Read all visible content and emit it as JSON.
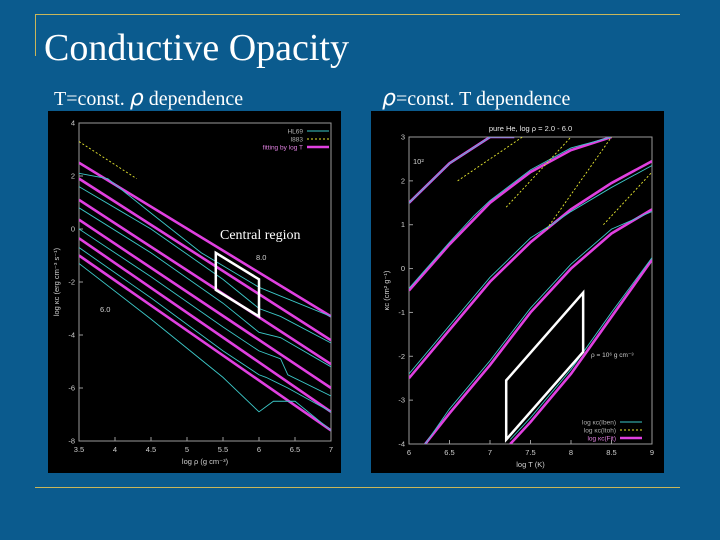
{
  "slide": {
    "title": "Conductive Opacity",
    "left_subtitle_pre": "T=const.",
    "left_subtitle_sym": "ρ",
    "left_subtitle_post": "dependence",
    "right_subtitle_sym": "ρ",
    "right_subtitle_post": "=const. T dependence",
    "colors": {
      "background": "#0b5b8e",
      "rule": "#c9b65a",
      "fit": "#e040e0",
      "hl69": "#3cc8c8",
      "itoh": "#e8e830"
    }
  },
  "chart_data": [
    {
      "type": "line",
      "xlabel": "log ρ (g cm⁻³)",
      "ylabel": "log κc (erg cm⁻³ s⁻¹)",
      "xlim": [
        3.5,
        7
      ],
      "ylim": [
        -8,
        4
      ],
      "xticks": [
        "3.5",
        "4",
        "4.5",
        "5",
        "5.5",
        "6",
        "6.5",
        "7"
      ],
      "yticks": [
        "4",
        "2",
        "0",
        "-2",
        "-4",
        "-6",
        "-8"
      ],
      "legend": [
        "HL69",
        "I883",
        "fitting by log T"
      ],
      "legend_position": "top-right",
      "annotations": [
        "Central region",
        "8.0",
        "6.0"
      ],
      "fit_lines": [
        {
          "x": [
            3.5,
            7
          ],
          "y": [
            2.5,
            -3.3
          ]
        },
        {
          "x": [
            3.5,
            7
          ],
          "y": [
            1.9,
            -4.2
          ]
        },
        {
          "x": [
            3.5,
            7
          ],
          "y": [
            1.1,
            -5.1
          ]
        },
        {
          "x": [
            3.5,
            7
          ],
          "y": [
            0.35,
            -6.0
          ]
        },
        {
          "x": [
            3.5,
            7
          ],
          "y": [
            -0.35,
            -6.9
          ]
        },
        {
          "x": [
            3.5,
            7
          ],
          "y": [
            -1.0,
            -7.6
          ]
        }
      ],
      "hl69_lines": [
        {
          "x": [
            3.5,
            3.9,
            4.5,
            5.2,
            6.0,
            7.0
          ],
          "y": [
            2.1,
            1.9,
            0.6,
            -0.9,
            -2.2,
            -3.3
          ]
        },
        {
          "x": [
            3.5,
            4.5,
            5.5,
            6.0,
            6.3,
            7.0
          ],
          "y": [
            1.6,
            0.0,
            -1.9,
            -3.0,
            -3.3,
            -4.3
          ]
        },
        {
          "x": [
            3.5,
            4.5,
            5.5,
            6.0,
            6.3,
            7.0
          ],
          "y": [
            0.8,
            -0.9,
            -2.8,
            -3.9,
            -4.1,
            -5.2
          ]
        },
        {
          "x": [
            3.5,
            4.5,
            5.5,
            6.0,
            6.3,
            6.4,
            7.0
          ],
          "y": [
            0.0,
            -1.8,
            -3.7,
            -4.6,
            -4.9,
            -5.5,
            -6.3
          ]
        },
        {
          "x": [
            3.5,
            4.5,
            5.5,
            6.0,
            6.1,
            6.4,
            7.0
          ],
          "y": [
            -0.7,
            -2.6,
            -4.6,
            -5.5,
            -5.6,
            -6.0,
            -6.9
          ]
        },
        {
          "x": [
            3.5,
            4.5,
            5.5,
            6.0,
            6.2,
            6.5,
            7.0
          ],
          "y": [
            -1.3,
            -3.4,
            -5.6,
            -6.9,
            -6.5,
            -6.5,
            -7.6
          ]
        }
      ],
      "itoh_lines": [
        {
          "x": [
            3.5,
            4.3
          ],
          "y": [
            3.3,
            1.9
          ]
        }
      ],
      "region": [
        [
          5.4,
          -0.9
        ],
        [
          5.4,
          -2.3
        ],
        [
          6.0,
          -3.3
        ],
        [
          6.0,
          -1.9
        ]
      ]
    },
    {
      "type": "line",
      "title": "pure He, log ρ = 2.0 - 6.0",
      "xlabel": "log T (K)",
      "ylabel": "κc (cm² g⁻¹)",
      "xlim": [
        6,
        9
      ],
      "ylim": [
        -4,
        3
      ],
      "xticks": [
        "6",
        "6.5",
        "7",
        "7.5",
        "8",
        "8.5",
        "9"
      ],
      "yticks": [
        "3",
        "2",
        "1",
        "0",
        "-1",
        "-2",
        "-3",
        "-4"
      ],
      "legend": [
        "log κc(Iben)",
        "log κc(Itoh)",
        "log κc(Fit)"
      ],
      "legend_position": "bottom-right",
      "annotations": [
        "10²",
        "ρ = 10⁶ g cm⁻³"
      ],
      "fit_lines": [
        {
          "x": [
            6.0,
            6.5,
            7.0,
            7.3
          ],
          "y": [
            1.5,
            2.4,
            3.0,
            3.0
          ]
        },
        {
          "x": [
            6.0,
            6.5,
            7.0,
            7.5,
            8.0,
            8.5
          ],
          "y": [
            -0.5,
            0.55,
            1.5,
            2.2,
            2.7,
            3.0
          ]
        },
        {
          "x": [
            6.0,
            6.5,
            7.0,
            7.5,
            8.0,
            8.5,
            9.0
          ],
          "y": [
            -2.5,
            -1.4,
            -0.3,
            0.6,
            1.35,
            1.95,
            2.45
          ]
        },
        {
          "x": [
            6.2,
            6.5,
            7.0,
            7.5,
            8.0,
            8.5,
            9.0
          ],
          "y": [
            -4.0,
            -3.3,
            -2.2,
            -1.0,
            0.0,
            0.8,
            1.35
          ]
        },
        {
          "x": [
            7.25,
            7.5,
            8.0,
            8.5,
            9.0
          ],
          "y": [
            -4.0,
            -3.5,
            -2.4,
            -1.1,
            0.2
          ]
        }
      ],
      "iben_lines": [
        {
          "x": [
            6.0,
            6.5,
            7.0,
            7.3
          ],
          "y": [
            1.5,
            2.4,
            3.0,
            3.0
          ]
        },
        {
          "x": [
            6.0,
            6.5,
            6.8,
            7.0,
            7.5,
            8.0,
            8.5
          ],
          "y": [
            -0.45,
            0.6,
            1.2,
            1.55,
            2.25,
            2.75,
            3.0
          ]
        },
        {
          "x": [
            6.0,
            6.5,
            7.0,
            7.5,
            7.8,
            8.0,
            8.5,
            9.0
          ],
          "y": [
            -2.4,
            -1.3,
            -0.2,
            0.7,
            1.05,
            1.3,
            1.85,
            2.35
          ]
        },
        {
          "x": [
            6.2,
            6.5,
            7.0,
            7.5,
            8.0,
            8.5,
            9.0
          ],
          "y": [
            -4.0,
            -3.2,
            -2.1,
            -0.9,
            0.1,
            0.9,
            1.3
          ]
        },
        {
          "x": [
            7.25,
            7.5,
            8.0,
            8.5,
            9.0
          ],
          "y": [
            -3.9,
            -3.4,
            -2.3,
            -1.0,
            0.25
          ]
        }
      ],
      "itoh_lines": [
        {
          "x": [
            6.6,
            7.4
          ],
          "y": [
            2.0,
            3.0
          ]
        },
        {
          "x": [
            7.2,
            8.0
          ],
          "y": [
            1.4,
            3.0
          ]
        },
        {
          "x": [
            7.7,
            8.5
          ],
          "y": [
            0.9,
            3.0
          ]
        },
        {
          "x": [
            8.4,
            9.0
          ],
          "y": [
            1.0,
            2.2
          ]
        }
      ],
      "region": [
        [
          7.2,
          -2.55
        ],
        [
          7.2,
          -3.9
        ],
        [
          8.15,
          -1.9
        ],
        [
          8.15,
          -0.55
        ]
      ]
    }
  ]
}
